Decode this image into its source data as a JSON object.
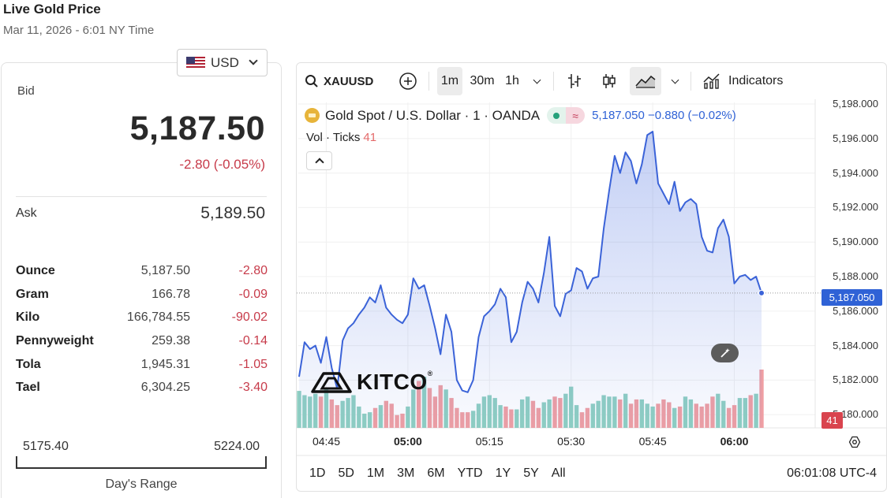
{
  "header": {
    "title": "Live Gold Price",
    "date": "Mar 11, 2026 - 6:01 NY Time"
  },
  "currency": {
    "selected": "USD",
    "flag_icon": "us-flag-icon"
  },
  "quote": {
    "bid_label": "Bid",
    "bid": "5,187.50",
    "change": "-2.80 (-0.05%)",
    "ask_label": "Ask",
    "ask": "5,189.50",
    "negative_color": "#c73b4a"
  },
  "units": [
    {
      "name": "Ounce",
      "price": "5,187.50",
      "change": "-2.80"
    },
    {
      "name": "Gram",
      "price": "166.78",
      "change": "-0.09"
    },
    {
      "name": "Kilo",
      "price": "166,784.55",
      "change": "-90.02"
    },
    {
      "name": "Pennyweight",
      "price": "259.38",
      "change": "-0.14"
    },
    {
      "name": "Tola",
      "price": "1,945.31",
      "change": "-1.05"
    },
    {
      "name": "Tael",
      "price": "6,304.25",
      "change": "-3.40"
    }
  ],
  "day_range": {
    "low": "5175.40",
    "high": "5224.00",
    "label": "Day's Range"
  },
  "chart": {
    "symbol": "XAUUSD",
    "intervals": [
      "1m",
      "30m",
      "1h"
    ],
    "active_interval": "1m",
    "indicators_label": "Indicators",
    "legend_title": "Gold Spot / U.S. Dollar · 1 · OANDA",
    "legend_price": "5,187.050  −0.880 (−0.02%)",
    "vol_label": "Vol · Ticks",
    "vol_value": "41",
    "last_price_tag": "5,187.050",
    "last_vol_tag": "41",
    "logo_text": "KITCO",
    "range_tabs": [
      "1D",
      "5D",
      "1M",
      "3M",
      "6M",
      "YTD",
      "1Y",
      "5Y",
      "All"
    ],
    "clock": "06:01:08 UTC-4",
    "line_color": "#3b63d8"
  },
  "chart_data": {
    "type": "line",
    "title": "Gold Spot / U.S. Dollar · 1 · OANDA",
    "y_ticks": [
      "5,198.000",
      "5,196.000",
      "5,194.000",
      "5,192.000",
      "5,190.000",
      "5,188.000",
      "5,186.000",
      "5,184.000",
      "5,182.000",
      "5,180.000"
    ],
    "x_ticks": [
      "04:45",
      "05:00",
      "05:15",
      "05:30",
      "05:45",
      "06:00"
    ],
    "x_ticks_bold": [
      false,
      true,
      false,
      false,
      false,
      true
    ],
    "ylim": [
      5179.6,
      5198.0
    ],
    "x_minutes": [
      0,
      1,
      2,
      3,
      4,
      5,
      6,
      7,
      8,
      9,
      10,
      11,
      12,
      13,
      14,
      15,
      16,
      17,
      18,
      19,
      20,
      21,
      22,
      23,
      24,
      25,
      26,
      27,
      28,
      29,
      30,
      31,
      32,
      33,
      34,
      35,
      36,
      37,
      38,
      39,
      40,
      41,
      42,
      43,
      44,
      45,
      46,
      47,
      48,
      49,
      50,
      51,
      52,
      53,
      54,
      55,
      56,
      57,
      58,
      59,
      60,
      61,
      62,
      63,
      64,
      65,
      66,
      67,
      68,
      69,
      70,
      71,
      72,
      73,
      74,
      75,
      76,
      77,
      78,
      79,
      80,
      81,
      82,
      83,
      84,
      85
    ],
    "price": [
      5182.2,
      5184.2,
      5183.8,
      5184.0,
      5183.0,
      5184.5,
      5182.7,
      5181.5,
      5184.3,
      5185.0,
      5185.3,
      5185.8,
      5186.2,
      5186.8,
      5186.5,
      5187.5,
      5186.2,
      5185.8,
      5185.5,
      5185.3,
      5185.8,
      5187.9,
      5187.3,
      5187.5,
      5186.3,
      5185.0,
      5183.5,
      5185.8,
      5184.8,
      5182.0,
      5181.4,
      5181.3,
      5182.0,
      5184.5,
      5185.7,
      5186.0,
      5186.4,
      5187.3,
      5186.8,
      5184.2,
      5184.8,
      5186.5,
      5187.7,
      5187.3,
      5186.5,
      5188.2,
      5190.3,
      5186.3,
      5185.7,
      5187.0,
      5187.2,
      5188.5,
      5188.3,
      5187.3,
      5187.9,
      5188.0,
      5190.8,
      5193.0,
      5195.0,
      5194.0,
      5195.2,
      5194.7,
      5193.4,
      5194.5,
      5196.2,
      5196.4,
      5193.4,
      5192.8,
      5192.2,
      5193.5,
      5191.8,
      5192.3,
      5192.5,
      5192.2,
      5190.3,
      5189.5,
      5189.4,
      5190.8,
      5191.3,
      5190.3,
      5187.6,
      5188.0,
      5188.1,
      5187.8,
      5188.0,
      5187.05
    ],
    "volume_ticks": [
      26,
      23,
      22,
      24,
      22,
      27,
      20,
      16,
      19,
      21,
      23,
      15,
      10,
      11,
      14,
      16,
      19,
      17,
      9,
      10,
      15,
      27,
      33,
      36,
      28,
      22,
      30,
      27,
      21,
      14,
      11,
      11,
      12,
      17,
      22,
      23,
      21,
      16,
      15,
      13,
      13,
      20,
      22,
      19,
      14,
      18,
      20,
      22,
      21,
      24,
      29,
      16,
      11,
      14,
      17,
      19,
      23,
      22,
      22,
      20,
      24,
      17,
      20,
      20,
      17,
      15,
      17,
      20,
      18,
      14,
      15,
      22,
      20,
      17,
      15,
      17,
      22,
      24,
      19,
      14,
      16,
      21,
      21,
      23,
      24,
      41
    ],
    "volume_up": [
      true,
      true,
      true,
      true,
      false,
      true,
      false,
      false,
      true,
      true,
      true,
      true,
      true,
      true,
      false,
      true,
      false,
      false,
      false,
      false,
      true,
      true,
      false,
      true,
      false,
      false,
      false,
      true,
      false,
      false,
      false,
      false,
      true,
      true,
      true,
      true,
      true,
      true,
      false,
      false,
      true,
      true,
      true,
      false,
      false,
      true,
      true,
      false,
      false,
      true,
      true,
      true,
      false,
      false,
      true,
      true,
      true,
      true,
      true,
      false,
      true,
      false,
      false,
      true,
      true,
      true,
      false,
      false,
      false,
      true,
      false,
      true,
      true,
      false,
      false,
      false,
      false,
      true,
      true,
      false,
      false,
      true,
      true,
      false,
      true,
      false
    ],
    "up_color": "#8fcfc2",
    "down_color": "#ef9fa3"
  }
}
